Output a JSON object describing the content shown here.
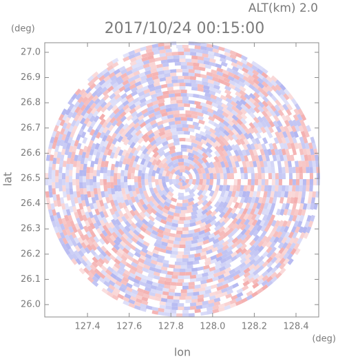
{
  "chart_data": {
    "type": "radar-ppi",
    "title": "2017/10/24 00:15:00",
    "altitude_label": "ALT(km) 2.0",
    "y_unit": "(deg)",
    "x_unit": "(deg)",
    "ylabel": "lat",
    "xlabel": "lon",
    "xlim": [
      127.195,
      128.509
    ],
    "ylim": [
      25.951,
      27.038
    ],
    "xticks": [
      127.4,
      127.6,
      127.8,
      {
        "value": 128.0,
        "label": "128.0"
      },
      128.2,
      128.4
    ],
    "yticks": [
      {
        "value": 26.0,
        "label": "26.0"
      },
      26.1,
      26.2,
      26.3,
      26.4,
      26.5,
      26.6,
      26.7,
      26.8,
      26.9,
      {
        "value": 27.0,
        "label": "27.0"
      }
    ],
    "positive_color": "#f3a9a9",
    "negative_color": "#aeb2f0"
  }
}
